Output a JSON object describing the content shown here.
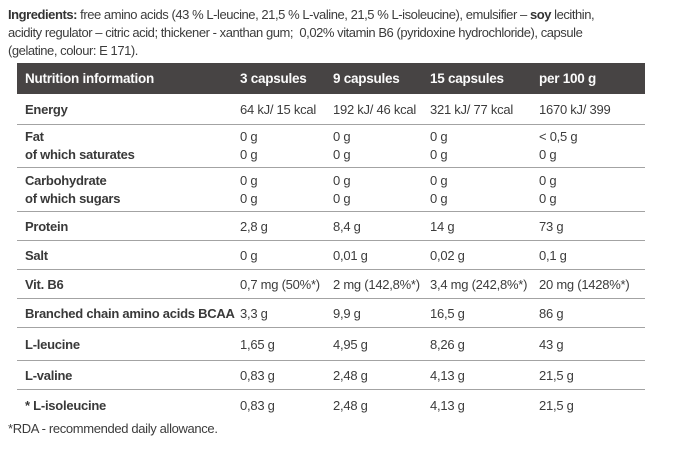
{
  "ingredients": {
    "line1_bold1": "Ingredients:",
    "line1_text1": " free amino acids (43 % L-leucine, 21,5 % L-valine, 21,5 % L-isoleucine), emulsifier – ",
    "line1_bold2": "soy",
    "line1_text2": " lecithin,",
    "line2": "acidity regulator – citric acid; thickener - xanthan gum;  0,02% vitamin B6 (pyridoxine hydrochloride), capsule",
    "line3": "(gelatine, colour: E 171)."
  },
  "table": {
    "header": [
      "Nutrition information",
      "3 capsules",
      "9 capsules",
      "15 capsules",
      "per 100 g"
    ],
    "rows": [
      {
        "label": "Energy",
        "values": [
          "64 kJ/ 15 kcal",
          "192 kJ/ 46 kcal",
          "321 kJ/ 77 kcal",
          "1670 kJ/ 399"
        ]
      },
      {
        "label": "Fat",
        "label2": "of which saturates",
        "values": [
          "0 g",
          "0 g",
          "0 g",
          "< 0,5 g"
        ],
        "values2": [
          "0 g",
          "0 g",
          "0 g",
          "0 g"
        ]
      },
      {
        "label": "Carbohydrate",
        "label2": "of which sugars",
        "values": [
          "0 g",
          "0 g",
          "0 g",
          "0 g"
        ],
        "values2": [
          "0 g",
          "0 g",
          "0 g",
          "0 g"
        ]
      },
      {
        "label": "Protein",
        "values": [
          "2,8 g",
          "8,4 g",
          "14 g",
          "73 g"
        ]
      },
      {
        "label": "Salt",
        "values": [
          "0 g",
          "0,01 g",
          "0,02 g",
          "0,1 g"
        ]
      },
      {
        "label": "Vit. B6",
        "values": [
          "0,7 mg (50%*)",
          "2 mg (142,8%*)",
          "3,4 mg (242,8%*)",
          "20 mg (1428%*)"
        ]
      },
      {
        "label": "Branched chain amino acids BCAA",
        "values": [
          "3,3 g",
          "9,9 g",
          "16,5 g",
          "86 g"
        ]
      },
      {
        "label": "L-leucine",
        "values": [
          "1,65 g",
          "4,95 g",
          "8,26 g",
          "43 g"
        ]
      },
      {
        "label": "L-valine",
        "values": [
          "0,83 g",
          "2,48 g",
          "4,13 g",
          "21,5 g"
        ]
      },
      {
        "label": "* L-isoleucine",
        "values": [
          "0,83 g",
          "2,48 g",
          "4,13 g",
          "21,5 g"
        ]
      }
    ]
  },
  "footnote": "*RDA - recommended daily allowance.",
  "colors": {
    "header_bg": "#474444",
    "header_text": "#fbfbfb",
    "body_text": "#3c3c3c",
    "separator": "#a3a3a3",
    "background": "#ffffff"
  }
}
